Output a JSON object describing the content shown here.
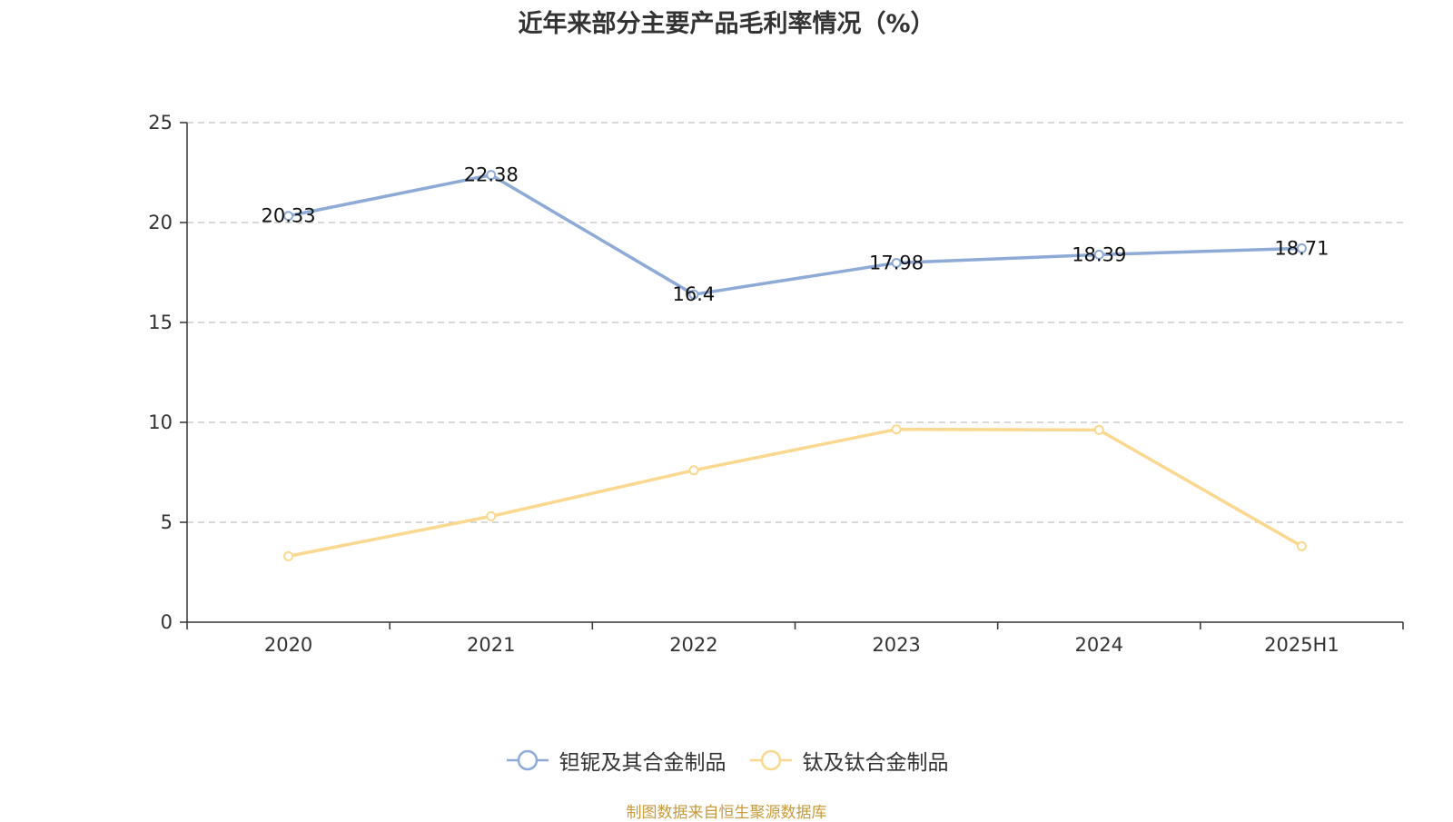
{
  "chart_data": {
    "type": "line",
    "title": "近年来部分主要产品毛利率情况（%）",
    "categories": [
      "2020",
      "2021",
      "2022",
      "2023",
      "2024",
      "2025H1"
    ],
    "ylim": [
      0,
      25
    ],
    "yticks": [
      0,
      5,
      10,
      15,
      20,
      25
    ],
    "grid": true,
    "legend_position": "bottom",
    "series": [
      {
        "name": "钽铌及其合金制品",
        "color": "#8eaad6",
        "values": [
          20.33,
          22.38,
          16.4,
          17.98,
          18.39,
          18.71
        ],
        "labels": [
          "20.33",
          "22.38",
          "16.4",
          "17.98",
          "18.39",
          "18.71"
        ],
        "show_labels": true
      },
      {
        "name": "钛及钛合金制品",
        "color": "#fad88f",
        "values": [
          3.3,
          5.3,
          7.6,
          9.65,
          9.62,
          3.8
        ],
        "show_labels": false
      }
    ]
  },
  "source_note": "制图数据来自恒生聚源数据库"
}
